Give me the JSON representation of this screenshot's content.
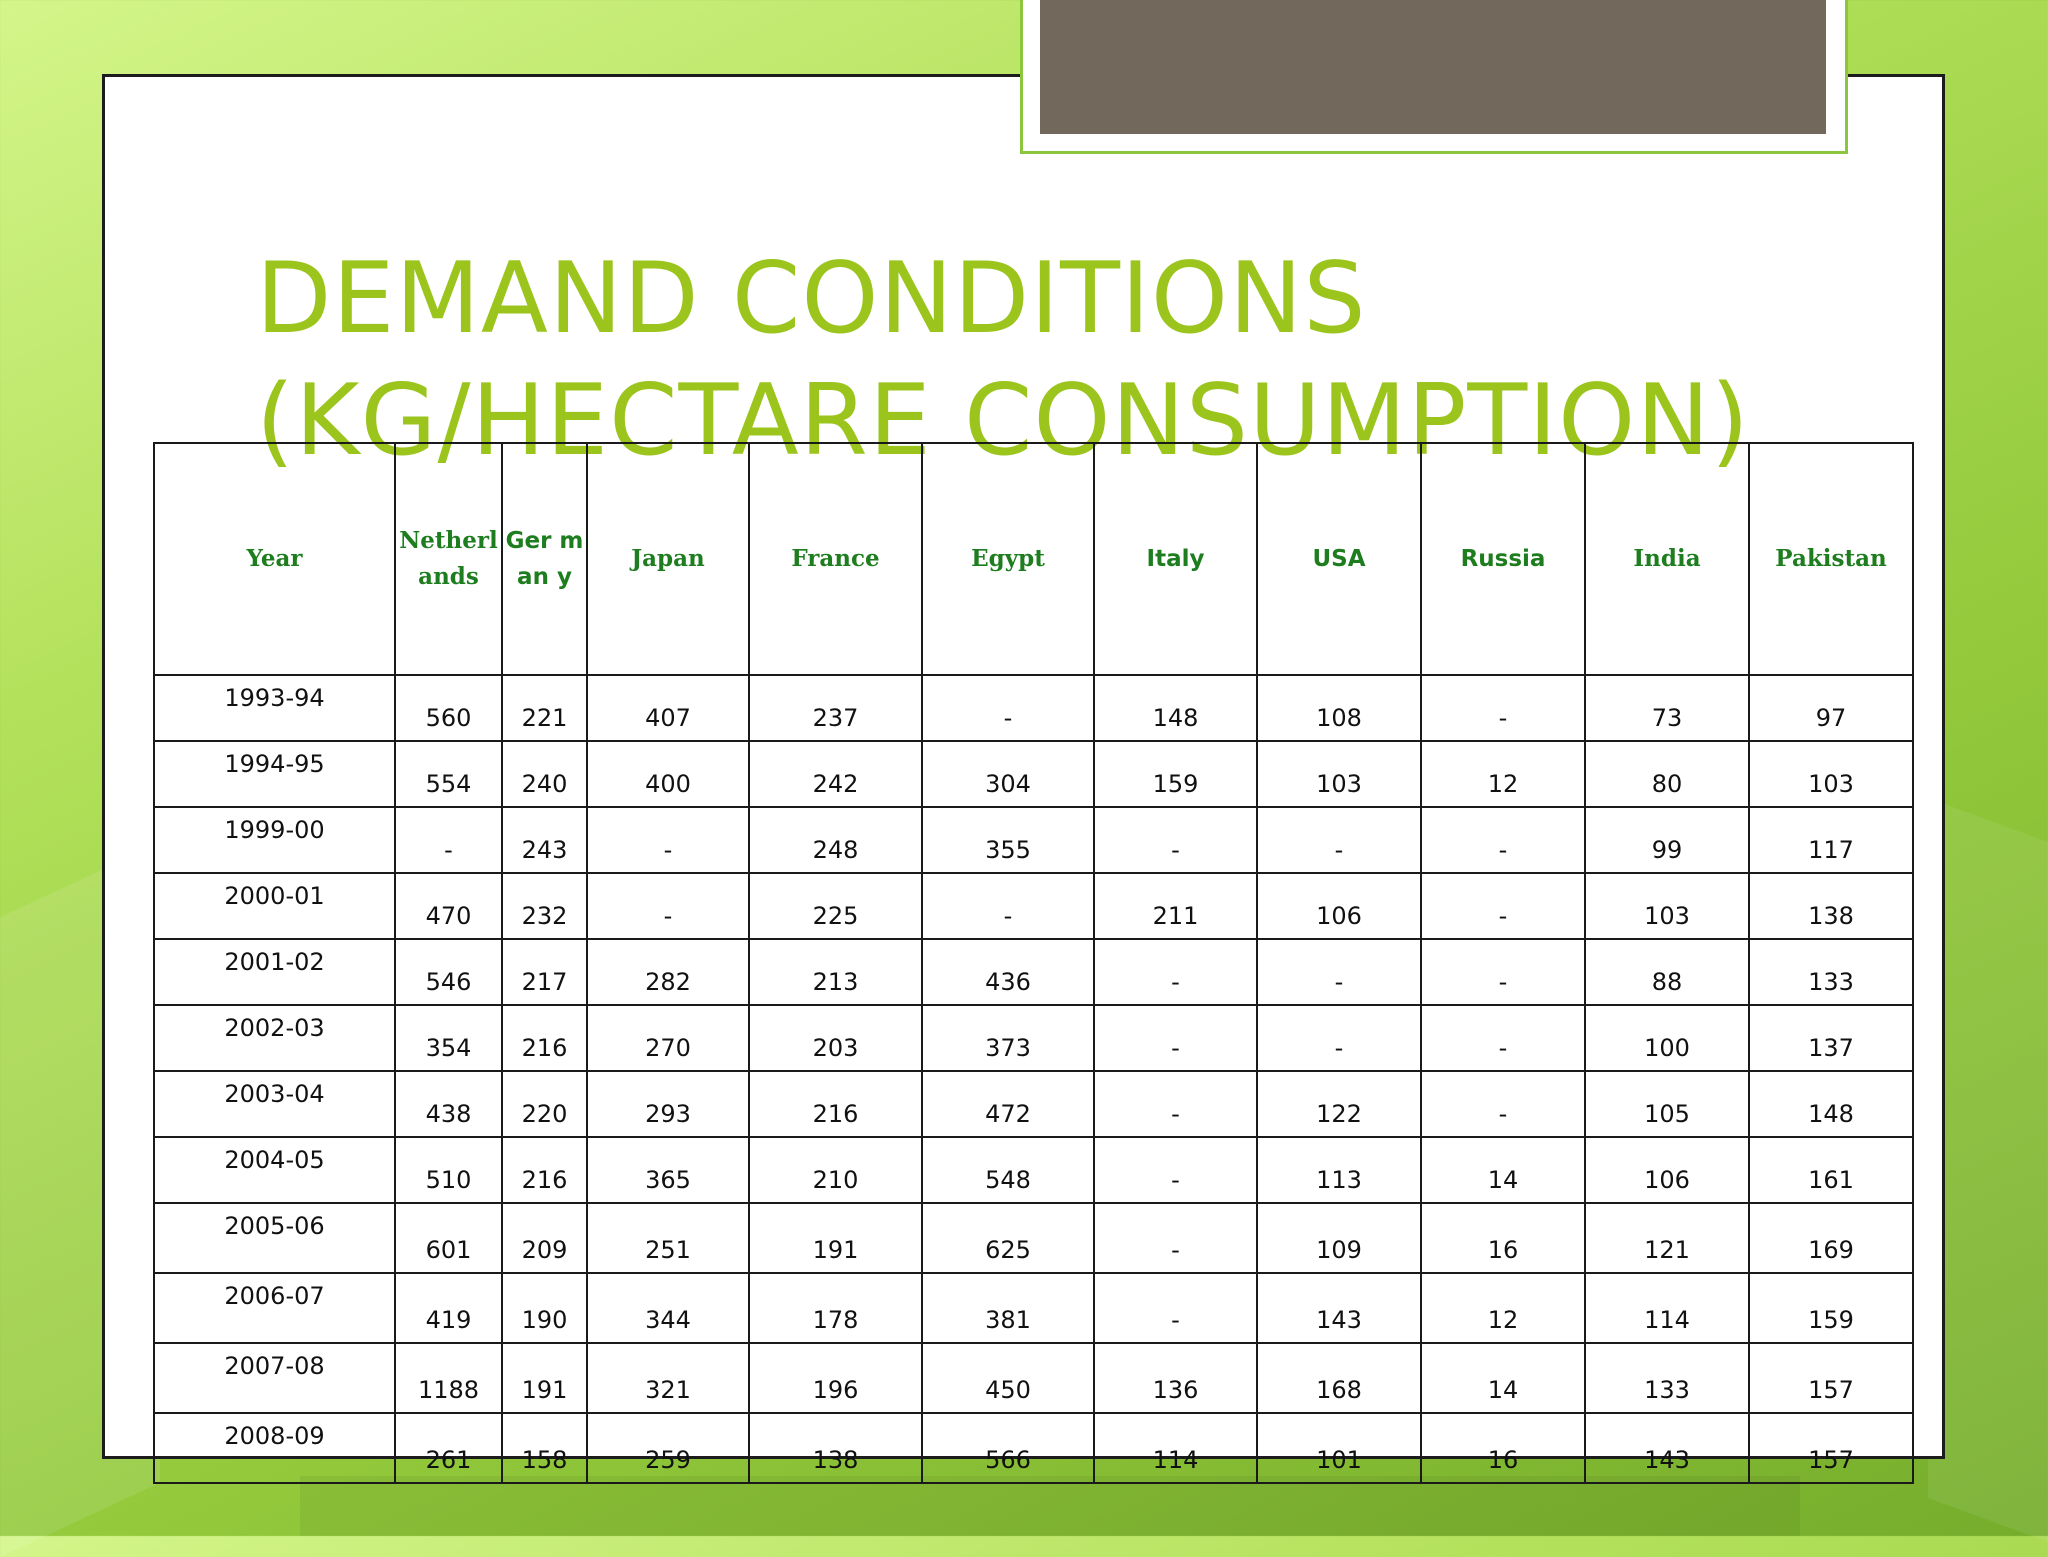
{
  "title": {
    "line1": "DEMAND CONDITIONS",
    "line2": "(KG/HECTARE CONSUMPTION)"
  },
  "table": {
    "headers": [
      "Year",
      "Netherl ands",
      "Ger man y",
      "Japan",
      "France",
      "Egypt",
      "Italy",
      "USA",
      "Russia",
      "India",
      "Pakistan"
    ],
    "rows": [
      [
        "1993-94",
        "560",
        "221",
        "407",
        "237",
        "-",
        "148",
        "108",
        "-",
        "73",
        "97"
      ],
      [
        "1994-95",
        "554",
        "240",
        "400",
        "242",
        "304",
        "159",
        "103",
        "12",
        "80",
        "103"
      ],
      [
        "1999-00",
        "-",
        "243",
        "-",
        "248",
        "355",
        "-",
        "-",
        "-",
        "99",
        "117"
      ],
      [
        "2000-01",
        "470",
        "232",
        "-",
        "225",
        "-",
        "211",
        "106",
        "-",
        "103",
        "138"
      ],
      [
        "2001-02",
        "546",
        "217",
        "282",
        "213",
        "436",
        "-",
        "-",
        "-",
        "88",
        "133"
      ],
      [
        "2002-03",
        "354",
        "216",
        "270",
        "203",
        "373",
        "-",
        "-",
        "-",
        "100",
        "137"
      ],
      [
        "2003-04",
        "438",
        "220",
        "293",
        "216",
        "472",
        "-",
        "122",
        "-",
        "105",
        "148"
      ],
      [
        "2004-05",
        "510",
        "216",
        "365",
        "210",
        "548",
        "-",
        "113",
        "14",
        "106",
        "161"
      ],
      [
        "2005-06",
        "601",
        "209",
        "251",
        "191",
        "625",
        "-",
        "109",
        "16",
        "121",
        "169"
      ],
      [
        "2006-07",
        "419",
        "190",
        "344",
        "178",
        "381",
        "-",
        "143",
        "12",
        "114",
        "159"
      ],
      [
        "2007-08",
        "1188",
        "191",
        "321",
        "196",
        "450",
        "136",
        "168",
        "14",
        "133",
        "157"
      ],
      [
        "2008-09",
        "261",
        "158",
        "259",
        "138",
        "566",
        "114",
        "101",
        "16",
        "143",
        "157"
      ]
    ]
  },
  "colors": {
    "title": "#9bc51d",
    "header_text": "#1e7d1e",
    "tab_fill": "#72695c",
    "tab_border": "#8cc63f"
  }
}
